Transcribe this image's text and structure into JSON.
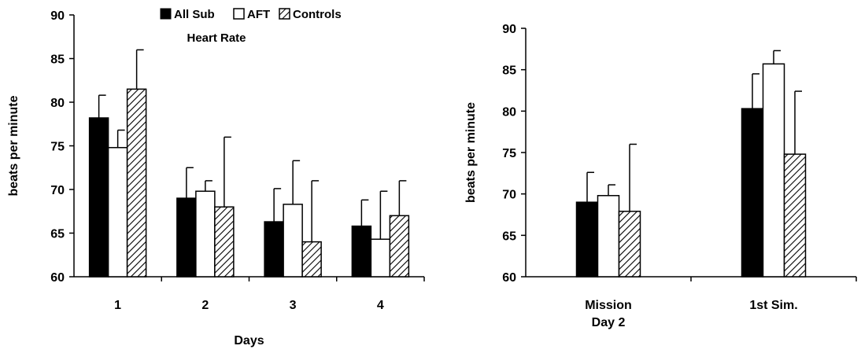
{
  "colors": {
    "all_sub": "#000000",
    "aft": "#ffffff",
    "controls_hatch": "#000000",
    "axis": "#000000"
  },
  "legend": {
    "items": [
      {
        "label": "All Sub",
        "style": "solid"
      },
      {
        "label": "AFT",
        "style": "open"
      },
      {
        "label": "Controls",
        "style": "hatched"
      }
    ]
  },
  "chart_data": [
    {
      "type": "bar",
      "title": "Heart Rate",
      "xlabel": "Days",
      "ylabel": "beats per minute",
      "ylim": [
        60,
        90
      ],
      "yticks": [
        60,
        65,
        70,
        75,
        80,
        85,
        90
      ],
      "categories": [
        "1",
        "2",
        "3",
        "4"
      ],
      "series": [
        {
          "name": "All Sub",
          "style": "solid",
          "values": [
            78.2,
            69.0,
            66.3,
            65.8
          ],
          "error": [
            2.6,
            3.5,
            3.8,
            3.0
          ]
        },
        {
          "name": "AFT",
          "style": "open",
          "values": [
            74.8,
            69.8,
            68.3,
            64.3
          ],
          "error": [
            2.0,
            1.2,
            5.0,
            5.5
          ]
        },
        {
          "name": "Controls",
          "style": "hatched",
          "values": [
            81.5,
            68.0,
            64.0,
            67.0
          ],
          "error": [
            4.5,
            8.0,
            7.0,
            4.0
          ]
        }
      ],
      "legend": "top-center",
      "grid": false
    },
    {
      "type": "bar",
      "title": "",
      "xlabel": "",
      "ylabel": "beats per minute",
      "ylim": [
        60,
        90
      ],
      "yticks": [
        60,
        65,
        70,
        75,
        80,
        85,
        90
      ],
      "categories": [
        [
          "Mission",
          "Day 2"
        ],
        [
          "1st Sim."
        ]
      ],
      "series": [
        {
          "name": "All Sub",
          "style": "solid",
          "values": [
            69.0,
            80.3
          ],
          "error": [
            3.6,
            4.2
          ]
        },
        {
          "name": "AFT",
          "style": "open",
          "values": [
            69.8,
            85.7
          ],
          "error": [
            1.3,
            1.6
          ]
        },
        {
          "name": "Controls",
          "style": "hatched",
          "values": [
            67.9,
            74.8
          ],
          "error": [
            8.1,
            7.6
          ]
        }
      ],
      "grid": false
    }
  ]
}
